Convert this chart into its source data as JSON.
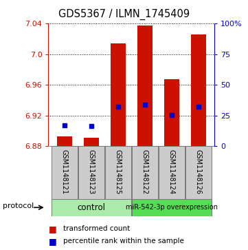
{
  "title": "GDS5367 / ILMN_1745409",
  "samples": [
    "GSM1148121",
    "GSM1148123",
    "GSM1148125",
    "GSM1148122",
    "GSM1148124",
    "GSM1148126"
  ],
  "bar_base": 6.88,
  "transformed_counts": [
    6.893,
    6.891,
    7.014,
    7.038,
    6.968,
    7.026
  ],
  "percentile_ranks": [
    6.907,
    6.906,
    6.932,
    6.934,
    6.921,
    6.932
  ],
  "ylim_left": [
    6.88,
    7.04
  ],
  "ylim_right": [
    0,
    100
  ],
  "yticks_left": [
    6.88,
    6.92,
    6.96,
    7.0,
    7.04
  ],
  "yticks_right": [
    0,
    25,
    50,
    75,
    100
  ],
  "bar_color": "#CC1100",
  "marker_color": "#0000CC",
  "control_color": "#AAEAAA",
  "mir_color": "#55DD55",
  "left_axis_color": "#CC1100",
  "right_axis_color": "#0000CC",
  "background_color": "#FFFFFF",
  "sample_box_color": "#CCCCCC",
  "bar_width": 0.55,
  "protocol_label": "protocol",
  "control_label": "control",
  "mir_label": "miR-542-3p overexpression",
  "legend_items": [
    "transformed count",
    "percentile rank within the sample"
  ],
  "n_control": 3,
  "n_mir": 3
}
